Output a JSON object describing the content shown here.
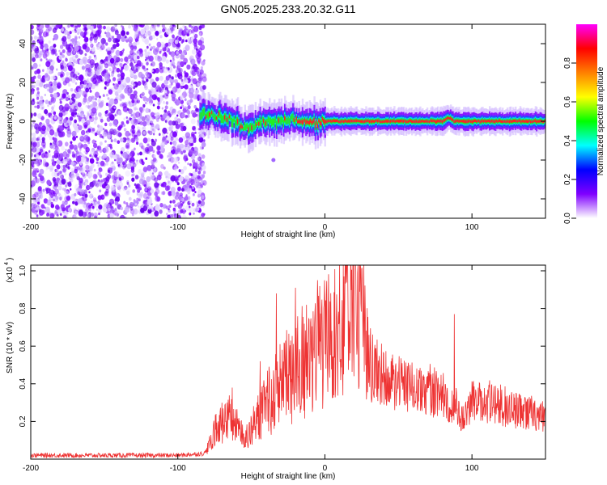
{
  "figure": {
    "title": "GN05.2025.233.20.32.G11"
  },
  "chart_data": [
    {
      "type": "heatmap",
      "xlabel": "Height of straight line (km)",
      "ylabel": "Frequency (Hz)",
      "xlim": [
        -200,
        150
      ],
      "ylim": [
        -50,
        50
      ],
      "x_ticks": [
        -200,
        -100,
        0,
        100
      ],
      "y_ticks": [
        -40,
        -20,
        0,
        20,
        40
      ],
      "colorbar": {
        "label": "Normalized spectral amplitude",
        "range": [
          0.0,
          1.0
        ],
        "ticks": [
          0.0,
          0.2,
          0.4,
          0.6,
          0.8
        ],
        "tick_labels": [
          "0.0",
          "0.2",
          "0.4",
          "0.6",
          "0.8"
        ],
        "colormap": [
          "#ffffff",
          "#7f00ff",
          "#0000ff",
          "#00ffff",
          "#00ff00",
          "#ffff00",
          "#ff8000",
          "#ff0000",
          "#ff00ff"
        ]
      },
      "ridge": {
        "noise_region_km": [
          -200,
          -85
        ],
        "ridge": [
          [
            -85,
            3
          ],
          [
            -78,
            4
          ],
          [
            -70,
            2
          ],
          [
            -64,
            1
          ],
          [
            -58,
            -2
          ],
          [
            -52,
            -4
          ],
          [
            -48,
            -2
          ],
          [
            -42,
            0
          ],
          [
            -36,
            -1
          ],
          [
            -30,
            0
          ],
          [
            -24,
            1
          ],
          [
            -18,
            1
          ],
          [
            -12,
            0
          ],
          [
            -6,
            -1
          ],
          [
            0,
            0
          ],
          [
            20,
            0
          ],
          [
            40,
            0
          ],
          [
            60,
            0
          ],
          [
            80,
            0
          ],
          [
            84,
            2
          ],
          [
            88,
            0
          ],
          [
            100,
            0
          ],
          [
            120,
            0
          ],
          [
            150,
            0
          ]
        ]
      }
    },
    {
      "type": "line",
      "xlabel": "Height of straight line (km)",
      "ylabel": "SNR (10 * v/v)",
      "y_multiplier_label": "(x10",
      "y_multiplier_exp": "4",
      "xlim": [
        -200,
        150
      ],
      "ylim": [
        0.0,
        1.03
      ],
      "x_ticks": [
        -200,
        -100,
        0,
        100
      ],
      "y_ticks": [
        0.2,
        0.4,
        0.6,
        0.8,
        1.0
      ],
      "y_tick_labels": [
        "0.2",
        "0.4",
        "0.6",
        "0.8",
        "1.0"
      ],
      "series": [
        {
          "color": "#ee3333",
          "envelope": [
            [
              -200,
              0.02
            ],
            [
              -150,
              0.02
            ],
            [
              -100,
              0.02
            ],
            [
              -82,
              0.03
            ],
            [
              -78,
              0.08
            ],
            [
              -75,
              0.15
            ],
            [
              -70,
              0.2
            ],
            [
              -65,
              0.22
            ],
            [
              -60,
              0.18
            ],
            [
              -55,
              0.12
            ],
            [
              -50,
              0.15
            ],
            [
              -45,
              0.22
            ],
            [
              -40,
              0.3
            ],
            [
              -35,
              0.33
            ],
            [
              -30,
              0.38
            ],
            [
              -25,
              0.45
            ],
            [
              -20,
              0.45
            ],
            [
              -15,
              0.5
            ],
            [
              -10,
              0.55
            ],
            [
              -5,
              0.58
            ],
            [
              0,
              0.62
            ],
            [
              5,
              0.65
            ],
            [
              10,
              0.7
            ],
            [
              15,
              0.75
            ],
            [
              20,
              0.9
            ],
            [
              25,
              0.7
            ],
            [
              30,
              0.5
            ],
            [
              40,
              0.42
            ],
            [
              50,
              0.4
            ],
            [
              60,
              0.38
            ],
            [
              70,
              0.36
            ],
            [
              80,
              0.34
            ],
            [
              85,
              0.3
            ],
            [
              90,
              0.28
            ],
            [
              92,
              0.2
            ],
            [
              95,
              0.22
            ],
            [
              100,
              0.32
            ],
            [
              110,
              0.3
            ],
            [
              120,
              0.28
            ],
            [
              130,
              0.26
            ],
            [
              140,
              0.24
            ],
            [
              150,
              0.22
            ]
          ],
          "spikes": [
            [
              -63,
              0.38
            ],
            [
              -44,
              0.52
            ],
            [
              -33,
              0.88
            ],
            [
              -20,
              0.91
            ],
            [
              -12,
              0.62
            ],
            [
              -5,
              0.95
            ],
            [
              13,
              0.97
            ],
            [
              21,
              1.02
            ],
            [
              45,
              0.52
            ],
            [
              88,
              0.77
            ]
          ]
        }
      ]
    }
  ]
}
